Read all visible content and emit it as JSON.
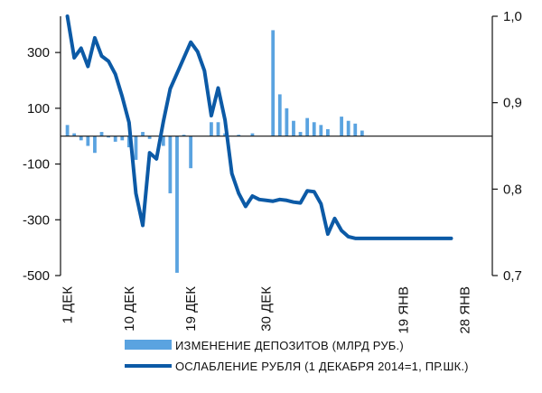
{
  "colors": {
    "bar": "#5aa3e0",
    "line": "#0c5aa6",
    "axis": "#111111",
    "background": "#ffffff"
  },
  "chart_data": {
    "type": "bar",
    "title": "",
    "y_left": {
      "min": -500,
      "max": 430,
      "ticks": [
        -500,
        -300,
        -100,
        100,
        300
      ],
      "tick_labels": [
        "-500",
        "-300",
        "-100",
        "100",
        "300"
      ]
    },
    "y_right": {
      "min": 0.7,
      "max": 1.0,
      "ticks": [
        0.7,
        0.8,
        0.9,
        1.0
      ],
      "tick_labels": [
        "0,7",
        "0,8",
        "0,9",
        "1,0"
      ]
    },
    "x_ticks": [
      {
        "day": 1,
        "label": "1 ДЕК"
      },
      {
        "day": 10,
        "label": "10 ДЕК"
      },
      {
        "day": 19,
        "label": "19 ДЕК"
      },
      {
        "day": 30,
        "label": "30 ДЕК"
      },
      {
        "day": 50,
        "label": "19 ЯНВ"
      },
      {
        "day": 59,
        "label": "28 ЯНВ"
      }
    ],
    "x_range": [
      0,
      63
    ],
    "series": [
      {
        "name": "ИЗМЕНЕНИЕ ДЕПОЗИТОВ (МЛРД РУБ.)",
        "type": "bar",
        "axis": "left",
        "x": [
          1,
          2,
          3,
          4,
          5,
          6,
          7,
          8,
          9,
          10,
          11,
          12,
          13,
          15,
          16,
          17,
          18,
          19,
          20,
          21,
          22,
          23,
          24,
          25,
          26,
          27,
          28,
          29,
          30,
          31,
          32,
          33,
          34,
          35,
          36,
          37,
          38,
          39,
          40,
          41,
          42,
          43,
          44,
          45,
          46,
          47,
          48,
          49
        ],
        "values": [
          40,
          10,
          -15,
          -35,
          -60,
          15,
          -5,
          -20,
          -15,
          -40,
          -85,
          15,
          -10,
          -35,
          -205,
          -490,
          5,
          -115,
          0,
          0,
          50,
          50,
          10,
          0,
          5,
          0,
          10,
          0,
          0,
          380,
          150,
          100,
          55,
          15,
          65,
          50,
          40,
          25,
          0,
          70,
          55,
          45,
          20,
          0,
          0,
          0,
          0,
          0
        ]
      },
      {
        "name": "ОСЛАБЛЕНИЕ РУБЛЯ (1 ДЕКАБРЯ 2014=1, ПР.ШК.)",
        "type": "line",
        "axis": "right",
        "x": [
          1,
          2,
          3,
          4,
          5,
          6,
          7,
          8,
          9,
          10,
          11,
          12,
          13,
          14,
          15,
          16,
          17,
          18,
          19,
          20,
          21,
          22,
          23,
          24,
          25,
          26,
          27,
          28,
          29,
          30,
          31,
          32,
          33,
          34,
          35,
          36,
          37,
          38,
          39,
          40,
          41,
          42,
          43,
          44,
          45,
          46,
          47,
          48,
          49,
          50,
          51,
          52,
          53,
          54,
          55,
          56,
          57
        ],
        "values": [
          1.0,
          0.952,
          0.963,
          0.942,
          0.975,
          0.954,
          0.948,
          0.933,
          0.907,
          0.877,
          0.795,
          0.758,
          0.842,
          0.835,
          0.878,
          0.916,
          0.934,
          0.952,
          0.97,
          0.959,
          0.937,
          0.885,
          0.917,
          0.88,
          0.818,
          0.795,
          0.78,
          0.792,
          0.788,
          0.787,
          0.786,
          0.788,
          0.787,
          0.785,
          0.784,
          0.798,
          0.797,
          0.783,
          0.748,
          0.766,
          0.752,
          0.745,
          0.743,
          0.743,
          0.743,
          0.743,
          0.743,
          0.743,
          0.743,
          0.743,
          0.743,
          0.743,
          0.743,
          0.743,
          0.743,
          0.743,
          0.743
        ]
      }
    ],
    "legend": [
      {
        "name": "ИЗМЕНЕНИЕ ДЕПОЗИТОВ (МЛРД РУБ.)",
        "marker": "bar"
      },
      {
        "name": "ОСЛАБЛЕНИЕ РУБЛЯ (1 ДЕКАБРЯ 2014=1, ПР.ШК.)",
        "marker": "line"
      }
    ],
    "legend_position": "bottom-center",
    "grid": false
  }
}
